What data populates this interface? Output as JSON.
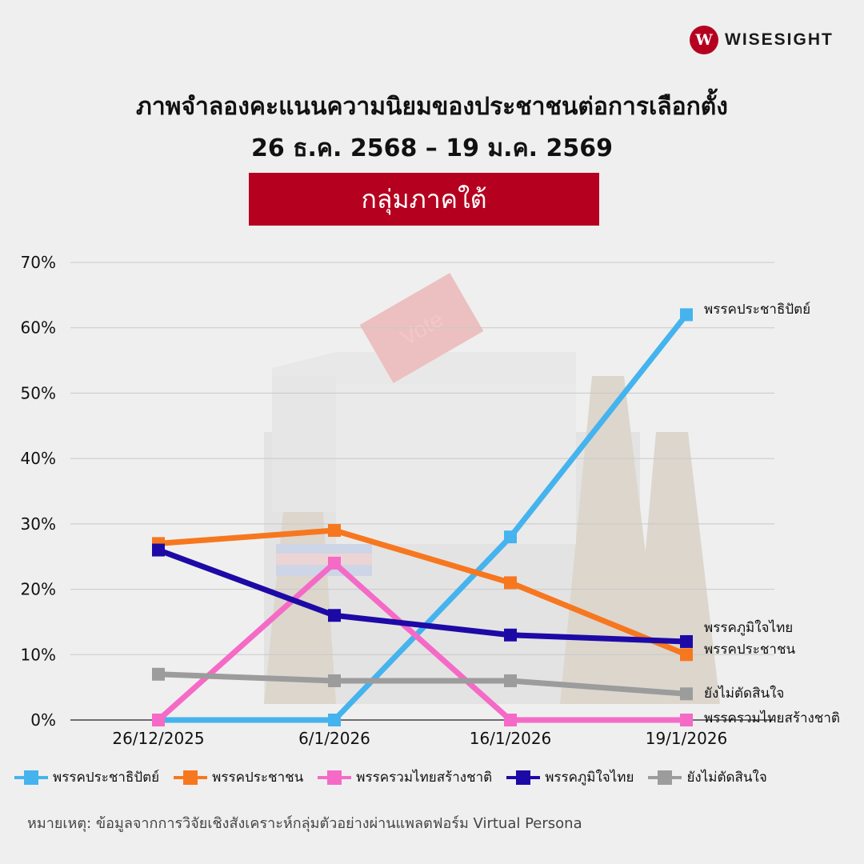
{
  "brand": {
    "name": "WISESIGHT",
    "mark": "W"
  },
  "header": {
    "title_line1": "ภาพจำลองคะแนนความนิยมของประชาชนต่อการเลือกตั้ง",
    "title_line2": "26 ธ.ค. 2568 – 19 ม.ค. 2569",
    "banner": "กลุ่มภาคใต้"
  },
  "background": {
    "ballot_text": "Vote"
  },
  "chart_data": {
    "type": "line",
    "categories": [
      "26/12/2025",
      "6/1/2026",
      "16/1/2026",
      "19/1/2026"
    ],
    "ylim": [
      0,
      70
    ],
    "yticks": [
      0,
      10,
      20,
      30,
      40,
      50,
      60,
      70
    ],
    "ytick_suffix": "%",
    "grid": true,
    "legend_position": "bottom",
    "series": [
      {
        "name": "พรรคประชาธิปัตย์",
        "color": "#45b3ee",
        "values": [
          0,
          0,
          28,
          62
        ],
        "end_label": "พรรคประชาธิปัตย์"
      },
      {
        "name": "พรรคประชาชน",
        "color": "#f7771f",
        "values": [
          27,
          29,
          21,
          10
        ],
        "end_label": "พรรคประชาชน"
      },
      {
        "name": "พรรครวมไทยสร้างชาติ",
        "color": "#f56ac6",
        "values": [
          0,
          24,
          0,
          0
        ],
        "end_label": "พรรครวมไทยสร้างชาติ"
      },
      {
        "name": "พรรคภูมิใจไทย",
        "color": "#1d0aa6",
        "values": [
          26,
          16,
          13,
          12
        ],
        "end_label": "พรรคภูมิใจไทย"
      },
      {
        "name": "ยังไม่ตัดสินใจ",
        "color": "#9c9c9c",
        "values": [
          7,
          6,
          6,
          4
        ],
        "end_label": "ยังไม่ตัดสินใจ"
      }
    ]
  },
  "note": "หมายเหตุ: ข้อมูลจากการวิจัยเชิงสังเคราะห์กลุ่มตัวอย่างผ่านแพลตฟอร์ม Virtual Persona"
}
